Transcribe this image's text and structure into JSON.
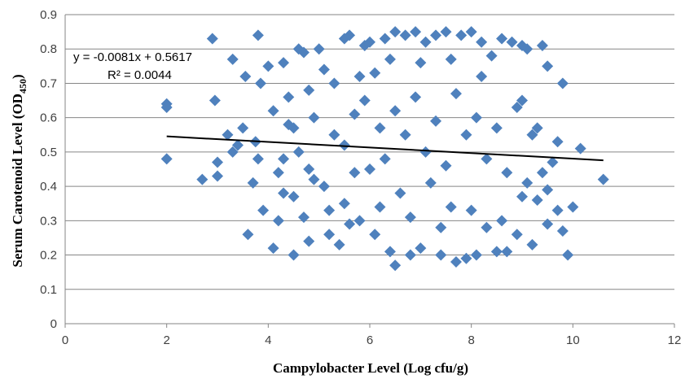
{
  "chart_data": {
    "type": "scatter",
    "xlabel": "Campylobacter Level (Log cfu/g)",
    "ylabel_main": "Serum Carotenoid Level (OD",
    "ylabel_sub": "450",
    "ylabel_close": ")",
    "xlim": [
      0,
      12
    ],
    "ylim": [
      0,
      0.9
    ],
    "xticks": [
      "0",
      "2",
      "4",
      "6",
      "8",
      "10",
      "12"
    ],
    "yticks": [
      "0",
      "0.1",
      "0.2",
      "0.3",
      "0.4",
      "0.5",
      "0.6",
      "0.7",
      "0.8",
      "0.9"
    ],
    "grid": "horizontal",
    "marker_color": "#4F81BD",
    "trendline": {
      "equation": "y = -0.0081x + 0.5617",
      "r_squared": "R² = 0.0044",
      "slope": -0.0081,
      "intercept": 0.5617,
      "x_range": [
        2,
        10.6
      ],
      "color": "#000000"
    },
    "series": [
      {
        "points": [
          [
            2.0,
            0.64
          ],
          [
            2.0,
            0.63
          ],
          [
            2.0,
            0.48
          ],
          [
            2.7,
            0.42
          ],
          [
            2.9,
            0.83
          ],
          [
            2.95,
            0.65
          ],
          [
            3.0,
            0.47
          ],
          [
            3.0,
            0.43
          ],
          [
            3.2,
            0.55
          ],
          [
            3.3,
            0.77
          ],
          [
            3.3,
            0.5
          ],
          [
            3.4,
            0.52
          ],
          [
            3.5,
            0.57
          ],
          [
            3.55,
            0.72
          ],
          [
            3.6,
            0.26
          ],
          [
            3.7,
            0.41
          ],
          [
            3.75,
            0.53
          ],
          [
            3.8,
            0.84
          ],
          [
            3.8,
            0.48
          ],
          [
            3.85,
            0.7
          ],
          [
            3.9,
            0.33
          ],
          [
            4.0,
            0.75
          ],
          [
            4.1,
            0.22
          ],
          [
            4.1,
            0.62
          ],
          [
            4.2,
            0.3
          ],
          [
            4.3,
            0.76
          ],
          [
            4.3,
            0.48
          ],
          [
            4.4,
            0.58
          ],
          [
            4.5,
            0.2
          ],
          [
            4.5,
            0.37
          ],
          [
            4.6,
            0.8
          ],
          [
            4.7,
            0.79
          ],
          [
            4.8,
            0.68
          ],
          [
            4.8,
            0.24
          ],
          [
            4.9,
            0.42
          ],
          [
            5.0,
            0.8
          ],
          [
            5.1,
            0.74
          ],
          [
            5.2,
            0.26
          ],
          [
            5.3,
            0.55
          ],
          [
            5.4,
            0.23
          ],
          [
            5.5,
            0.83
          ],
          [
            5.5,
            0.35
          ],
          [
            5.6,
            0.84
          ],
          [
            5.7,
            0.61
          ],
          [
            5.8,
            0.3
          ],
          [
            5.9,
            0.81
          ],
          [
            6.0,
            0.82
          ],
          [
            6.0,
            0.45
          ],
          [
            6.1,
            0.26
          ],
          [
            6.2,
            0.57
          ],
          [
            6.3,
            0.83
          ],
          [
            6.4,
            0.21
          ],
          [
            6.5,
            0.85
          ],
          [
            6.5,
            0.17
          ],
          [
            6.6,
            0.38
          ],
          [
            6.7,
            0.84
          ],
          [
            6.8,
            0.2
          ],
          [
            6.9,
            0.85
          ],
          [
            7.0,
            0.22
          ],
          [
            7.1,
            0.82
          ],
          [
            7.2,
            0.41
          ],
          [
            7.3,
            0.84
          ],
          [
            7.4,
            0.2
          ],
          [
            7.5,
            0.85
          ],
          [
            7.6,
            0.34
          ],
          [
            7.7,
            0.18
          ],
          [
            7.8,
            0.84
          ],
          [
            7.9,
            0.19
          ],
          [
            8.0,
            0.85
          ],
          [
            8.1,
            0.2
          ],
          [
            8.2,
            0.82
          ],
          [
            8.3,
            0.28
          ],
          [
            8.4,
            0.78
          ],
          [
            8.5,
            0.21
          ],
          [
            8.6,
            0.83
          ],
          [
            8.7,
            0.21
          ],
          [
            8.8,
            0.82
          ],
          [
            8.9,
            0.26
          ],
          [
            9.0,
            0.81
          ],
          [
            9.0,
            0.65
          ],
          [
            9.1,
            0.8
          ],
          [
            9.2,
            0.23
          ],
          [
            9.2,
            0.55
          ],
          [
            9.3,
            0.36
          ],
          [
            9.4,
            0.81
          ],
          [
            9.5,
            0.29
          ],
          [
            9.5,
            0.75
          ],
          [
            9.6,
            0.47
          ],
          [
            9.7,
            0.33
          ],
          [
            9.7,
            0.53
          ],
          [
            9.8,
            0.7
          ],
          [
            9.8,
            0.27
          ],
          [
            9.9,
            0.2
          ],
          [
            10.0,
            0.34
          ],
          [
            10.15,
            0.51
          ],
          [
            10.6,
            0.42
          ],
          [
            4.2,
            0.44
          ],
          [
            4.4,
            0.66
          ],
          [
            4.6,
            0.5
          ],
          [
            4.7,
            0.31
          ],
          [
            4.9,
            0.6
          ],
          [
            5.1,
            0.4
          ],
          [
            5.3,
            0.7
          ],
          [
            5.5,
            0.52
          ],
          [
            5.7,
            0.44
          ],
          [
            5.9,
            0.65
          ],
          [
            6.1,
            0.73
          ],
          [
            6.3,
            0.48
          ],
          [
            6.5,
            0.62
          ],
          [
            6.7,
            0.55
          ],
          [
            6.9,
            0.66
          ],
          [
            7.1,
            0.5
          ],
          [
            7.3,
            0.59
          ],
          [
            7.5,
            0.46
          ],
          [
            7.7,
            0.67
          ],
          [
            7.9,
            0.55
          ],
          [
            8.1,
            0.6
          ],
          [
            8.3,
            0.48
          ],
          [
            8.5,
            0.57
          ],
          [
            8.7,
            0.44
          ],
          [
            8.9,
            0.63
          ],
          [
            9.1,
            0.41
          ],
          [
            9.3,
            0.57
          ],
          [
            9.5,
            0.39
          ],
          [
            6.2,
            0.34
          ],
          [
            6.8,
            0.31
          ],
          [
            7.4,
            0.28
          ],
          [
            8.0,
            0.33
          ],
          [
            8.6,
            0.3
          ],
          [
            5.6,
            0.29
          ],
          [
            5.2,
            0.33
          ],
          [
            4.8,
            0.45
          ],
          [
            6.4,
            0.77
          ],
          [
            7.0,
            0.76
          ],
          [
            7.6,
            0.77
          ],
          [
            8.2,
            0.72
          ],
          [
            5.8,
            0.72
          ],
          [
            9.0,
            0.37
          ],
          [
            9.4,
            0.44
          ],
          [
            4.5,
            0.57
          ],
          [
            4.3,
            0.38
          ]
        ]
      }
    ]
  }
}
